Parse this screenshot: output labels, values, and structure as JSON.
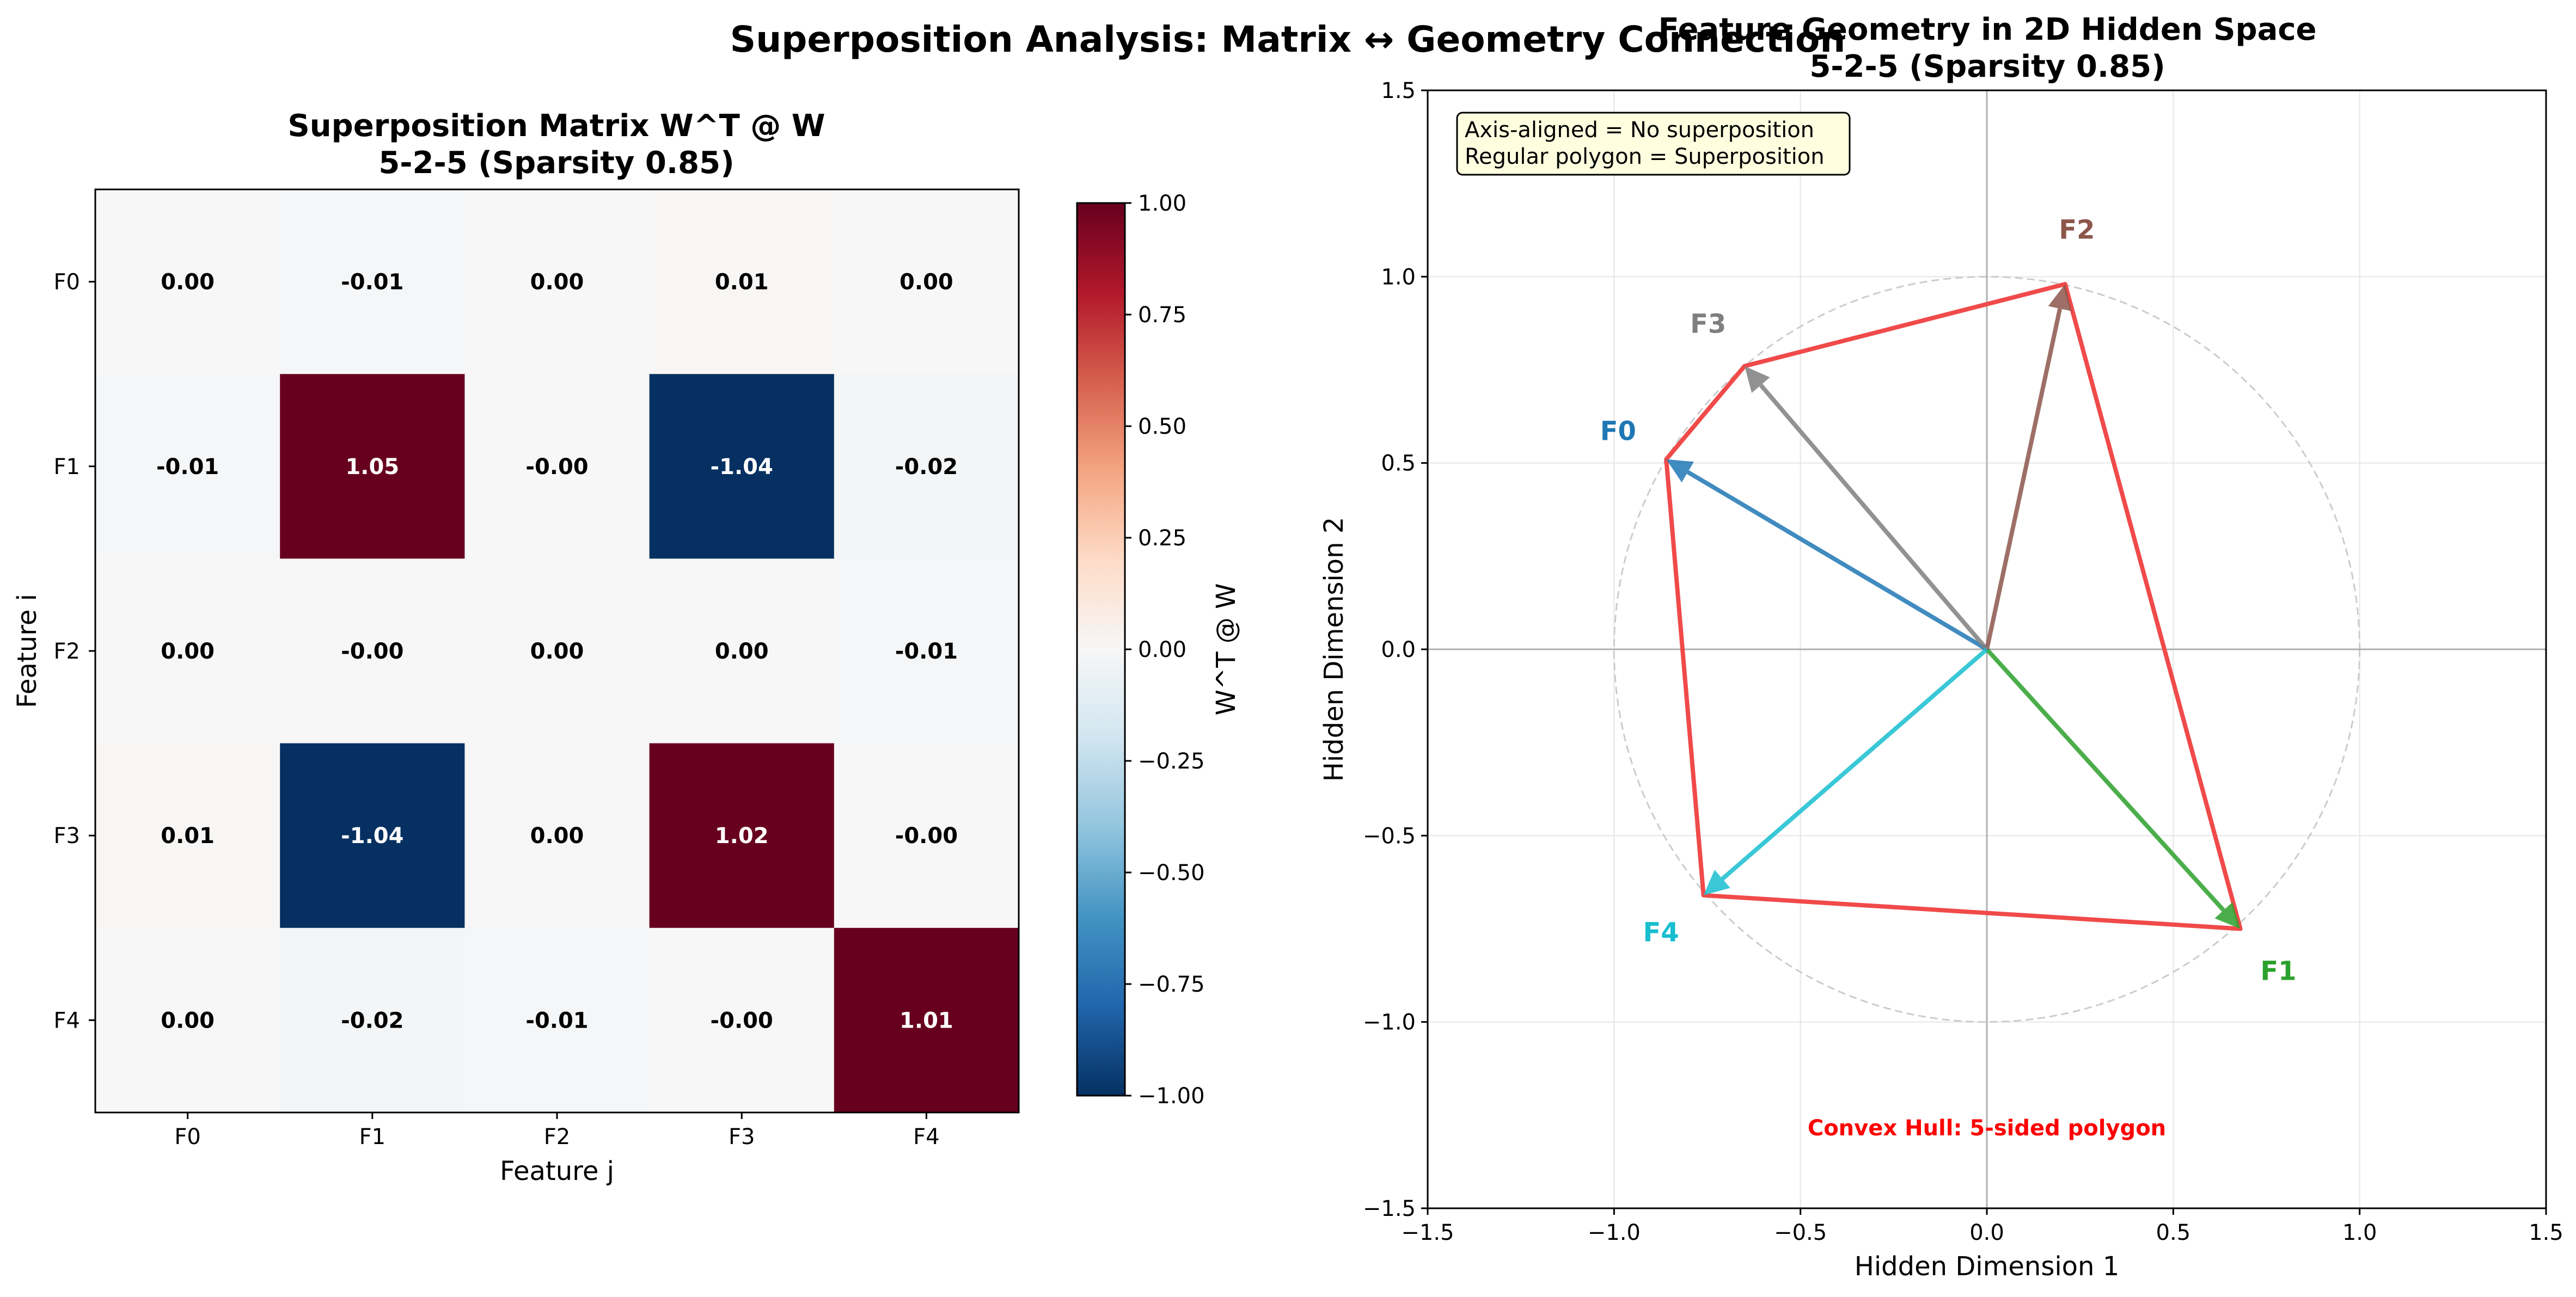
{
  "suptitle": "Superposition Analysis: Matrix ↔ Geometry Connection",
  "chart_data": [
    {
      "type": "heatmap",
      "title_line1": "Superposition Matrix W^T @ W",
      "title_line2": "5-2-5 (Sparsity 0.85)",
      "xlabel": "Feature j",
      "ylabel": "Feature i",
      "x_categories": [
        "F0",
        "F1",
        "F2",
        "F3",
        "F4"
      ],
      "y_categories": [
        "F0",
        "F1",
        "F2",
        "F3",
        "F4"
      ],
      "values": [
        [
          0.0,
          -0.01,
          0.0,
          0.01,
          0.0
        ],
        [
          -0.01,
          1.05,
          -0.0,
          -1.04,
          -0.02
        ],
        [
          0.0,
          -0.0,
          0.0,
          0.0,
          -0.01
        ],
        [
          0.01,
          -1.04,
          0.0,
          1.02,
          -0.0
        ],
        [
          0.0,
          -0.02,
          -0.01,
          -0.0,
          1.01
        ]
      ],
      "cell_labels": [
        [
          "0.00",
          "-0.01",
          "0.00",
          "0.01",
          "0.00"
        ],
        [
          "-0.01",
          "1.05",
          "-0.00",
          "-1.04",
          "-0.02"
        ],
        [
          "0.00",
          "-0.00",
          "0.00",
          "0.00",
          "-0.01"
        ],
        [
          "0.01",
          "-1.04",
          "0.00",
          "1.02",
          "-0.00"
        ],
        [
          "0.00",
          "-0.02",
          "-0.01",
          "-0.00",
          "1.01"
        ]
      ],
      "colormap": "RdBu_r",
      "vmin": -1.0,
      "vmax": 1.0,
      "colorbar_label": "W^T @ W",
      "colorbar_ticks": [
        {
          "value": 1.0,
          "label": "1.00"
        },
        {
          "value": 0.75,
          "label": "0.75"
        },
        {
          "value": 0.5,
          "label": "0.50"
        },
        {
          "value": 0.25,
          "label": "0.25"
        },
        {
          "value": 0.0,
          "label": "0.00"
        },
        {
          "value": -0.25,
          "label": "−0.25"
        },
        {
          "value": -0.5,
          "label": "−0.50"
        },
        {
          "value": -0.75,
          "label": "−0.75"
        },
        {
          "value": -1.0,
          "label": "−1.00"
        }
      ]
    },
    {
      "type": "scatter",
      "subtype": "vector-arrows",
      "title_line1": "Feature Geometry in 2D Hidden Space",
      "title_line2": "5-2-5 (Sparsity 0.85)",
      "xlabel": "Hidden Dimension 1",
      "ylabel": "Hidden Dimension 2",
      "xlim": [
        -1.5,
        1.5
      ],
      "ylim": [
        -1.5,
        1.5
      ],
      "grid": true,
      "xticks": [
        {
          "value": -1.5,
          "label": "−1.5"
        },
        {
          "value": -1.0,
          "label": "−1.0"
        },
        {
          "value": -0.5,
          "label": "−0.5"
        },
        {
          "value": 0.0,
          "label": "0.0"
        },
        {
          "value": 0.5,
          "label": "0.5"
        },
        {
          "value": 1.0,
          "label": "1.0"
        },
        {
          "value": 1.5,
          "label": "1.5"
        }
      ],
      "yticks": [
        {
          "value": 1.5,
          "label": "1.5"
        },
        {
          "value": 1.0,
          "label": "1.0"
        },
        {
          "value": 0.5,
          "label": "0.5"
        },
        {
          "value": 0.0,
          "label": "0.0"
        },
        {
          "value": -0.5,
          "label": "−0.5"
        },
        {
          "value": -1.0,
          "label": "−1.0"
        },
        {
          "value": -1.5,
          "label": "−1.5"
        }
      ],
      "unit_circle_radius": 1.0,
      "features": [
        {
          "label": "F0",
          "x": -0.86,
          "y": 0.51,
          "color": "#1f77b4"
        },
        {
          "label": "F1",
          "x": 0.68,
          "y": -0.75,
          "color": "#2ca02c"
        },
        {
          "label": "F2",
          "x": 0.21,
          "y": 0.98,
          "color": "#8c564b"
        },
        {
          "label": "F3",
          "x": -0.65,
          "y": 0.76,
          "color": "#7f7f7f"
        },
        {
          "label": "F4",
          "x": -0.76,
          "y": -0.66,
          "color": "#17becf"
        }
      ],
      "hull_order": [
        "F0",
        "F3",
        "F2",
        "F1",
        "F4"
      ],
      "hull_color": "#f04a4a",
      "info_box_line1": "Axis-aligned = No superposition",
      "info_box_line2": "Regular polygon = Superposition",
      "hull_annotation": "Convex Hull: 5-sided polygon",
      "hull_annotation_color": "#ff0000"
    }
  ]
}
